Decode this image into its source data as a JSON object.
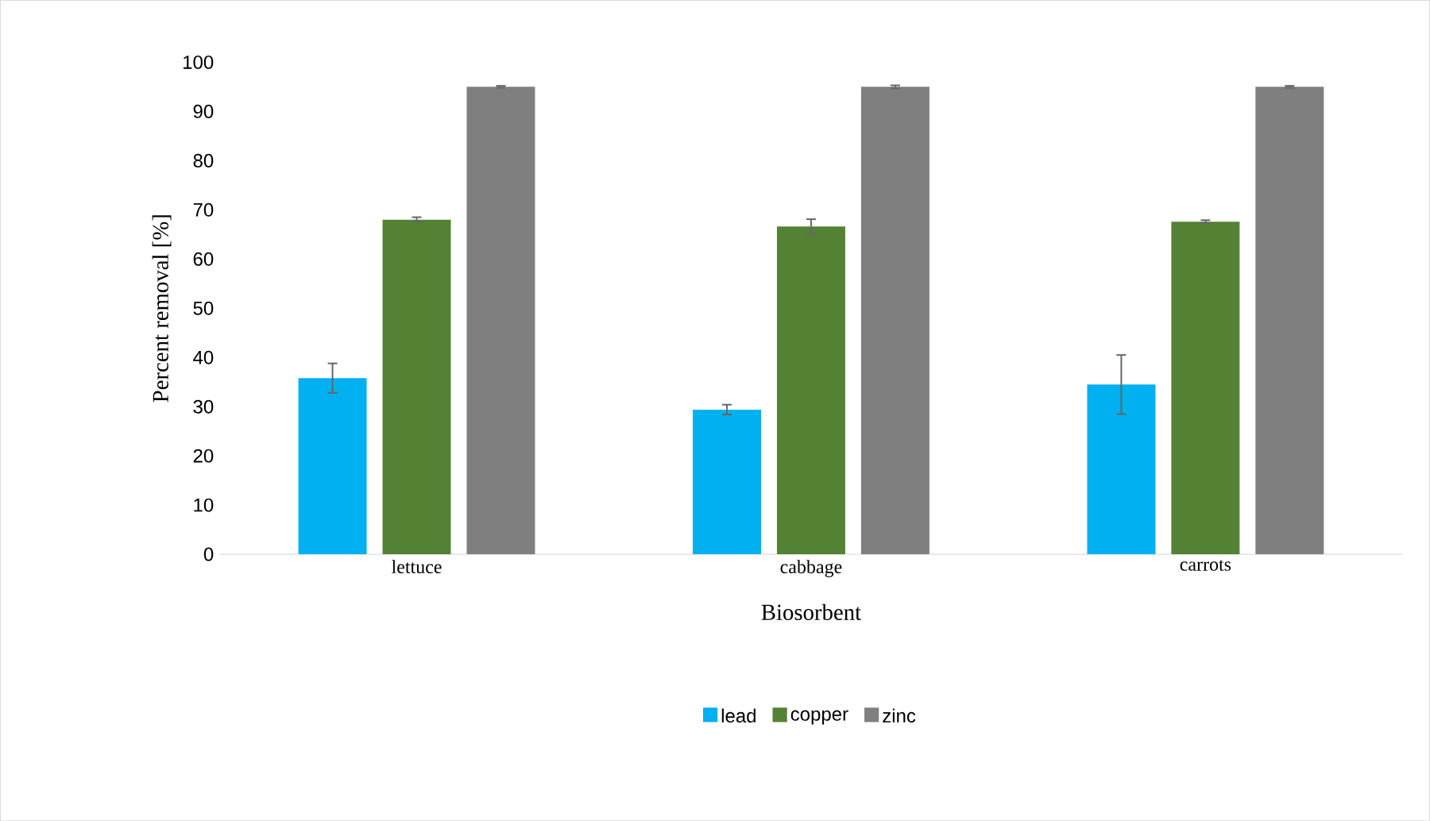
{
  "chart_data": {
    "type": "bar",
    "xlabel": "Biosorbent",
    "ylabel": "Percent removal [%]",
    "categories": [
      "lettuce",
      "cabbage",
      "carrots"
    ],
    "series": [
      {
        "name": "lead",
        "color": "#00b0f0",
        "values": [
          35.8,
          29.4,
          34.5
        ],
        "errors": [
          3,
          1,
          6
        ]
      },
      {
        "name": "copper",
        "color": "#548235",
        "values": [
          68,
          66.6,
          67.6
        ],
        "errors": [
          0.5,
          1.5,
          0.3
        ]
      },
      {
        "name": "zinc",
        "color": "#7f7f7f",
        "values": [
          95,
          95,
          95
        ],
        "errors": [
          0.2,
          0.3,
          0.2
        ]
      }
    ],
    "ylim": [
      0,
      100
    ],
    "yticks": [
      0,
      10,
      20,
      30,
      40,
      50,
      60,
      70,
      80,
      90,
      100
    ],
    "legend": "bottom"
  }
}
